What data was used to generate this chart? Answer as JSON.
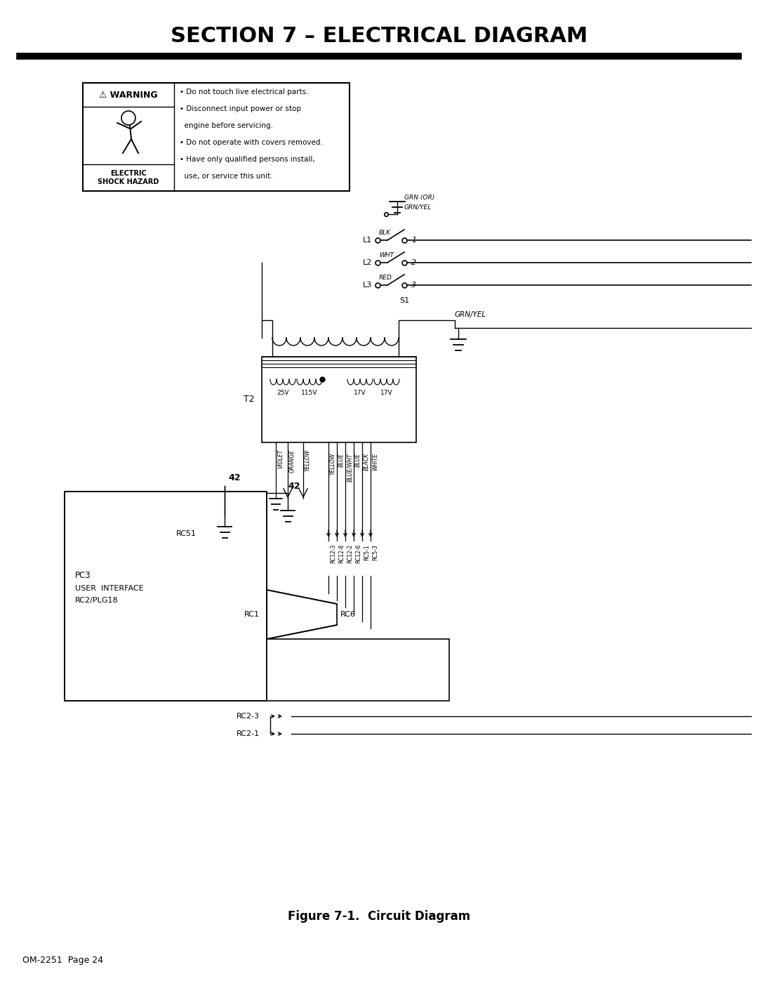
{
  "title": "SECTION 7 – ELECTRICAL DIAGRAM",
  "figure_caption": "Figure 7-1.  Circuit Diagram",
  "page_label": "OM-2251  Page 24",
  "background_color": "#ffffff",
  "warning_lines": [
    "• Do not touch live electrical parts.",
    "• Disconnect input power or stop",
    "  engine before servicing.",
    "• Do not operate with covers removed.",
    "• Have only qualified persons install,",
    "  use, or service this unit."
  ]
}
